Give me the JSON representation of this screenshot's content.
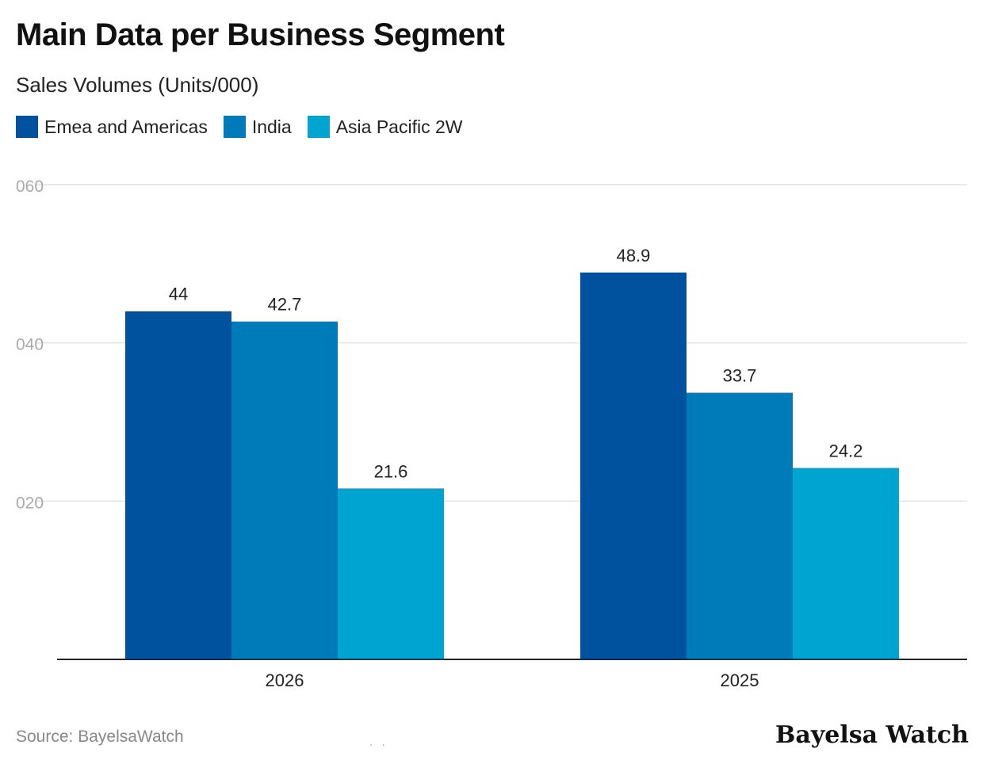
{
  "chart_data": {
    "type": "bar",
    "title": "Main Data per Business Segment",
    "subtitle": "Sales Volumes (Units/000)",
    "categories": [
      "2026",
      "2025"
    ],
    "series": [
      {
        "name": "Emea and Americas",
        "color": "#00529F",
        "values": [
          44,
          48.9
        ],
        "labels": [
          "44",
          "48.9"
        ]
      },
      {
        "name": "India",
        "color": "#007BBA",
        "values": [
          42.7,
          33.7
        ],
        "labels": [
          "42.7",
          "33.7"
        ]
      },
      {
        "name": "Asia Pacific 2W",
        "color": "#00A4D0",
        "values": [
          21.6,
          24.2
        ],
        "labels": [
          "21.6",
          "24.2"
        ]
      }
    ],
    "yticks": [
      {
        "value": 20,
        "label": "020"
      },
      {
        "value": 40,
        "label": "040"
      },
      {
        "value": 60,
        "label": "060"
      }
    ],
    "ylim": [
      0,
      60
    ],
    "grid": true,
    "legend_position": "top-left"
  },
  "footer": {
    "source": "Source: BayelsaWatch",
    "dots": ". .",
    "brand": "Bayelsa Watch"
  }
}
